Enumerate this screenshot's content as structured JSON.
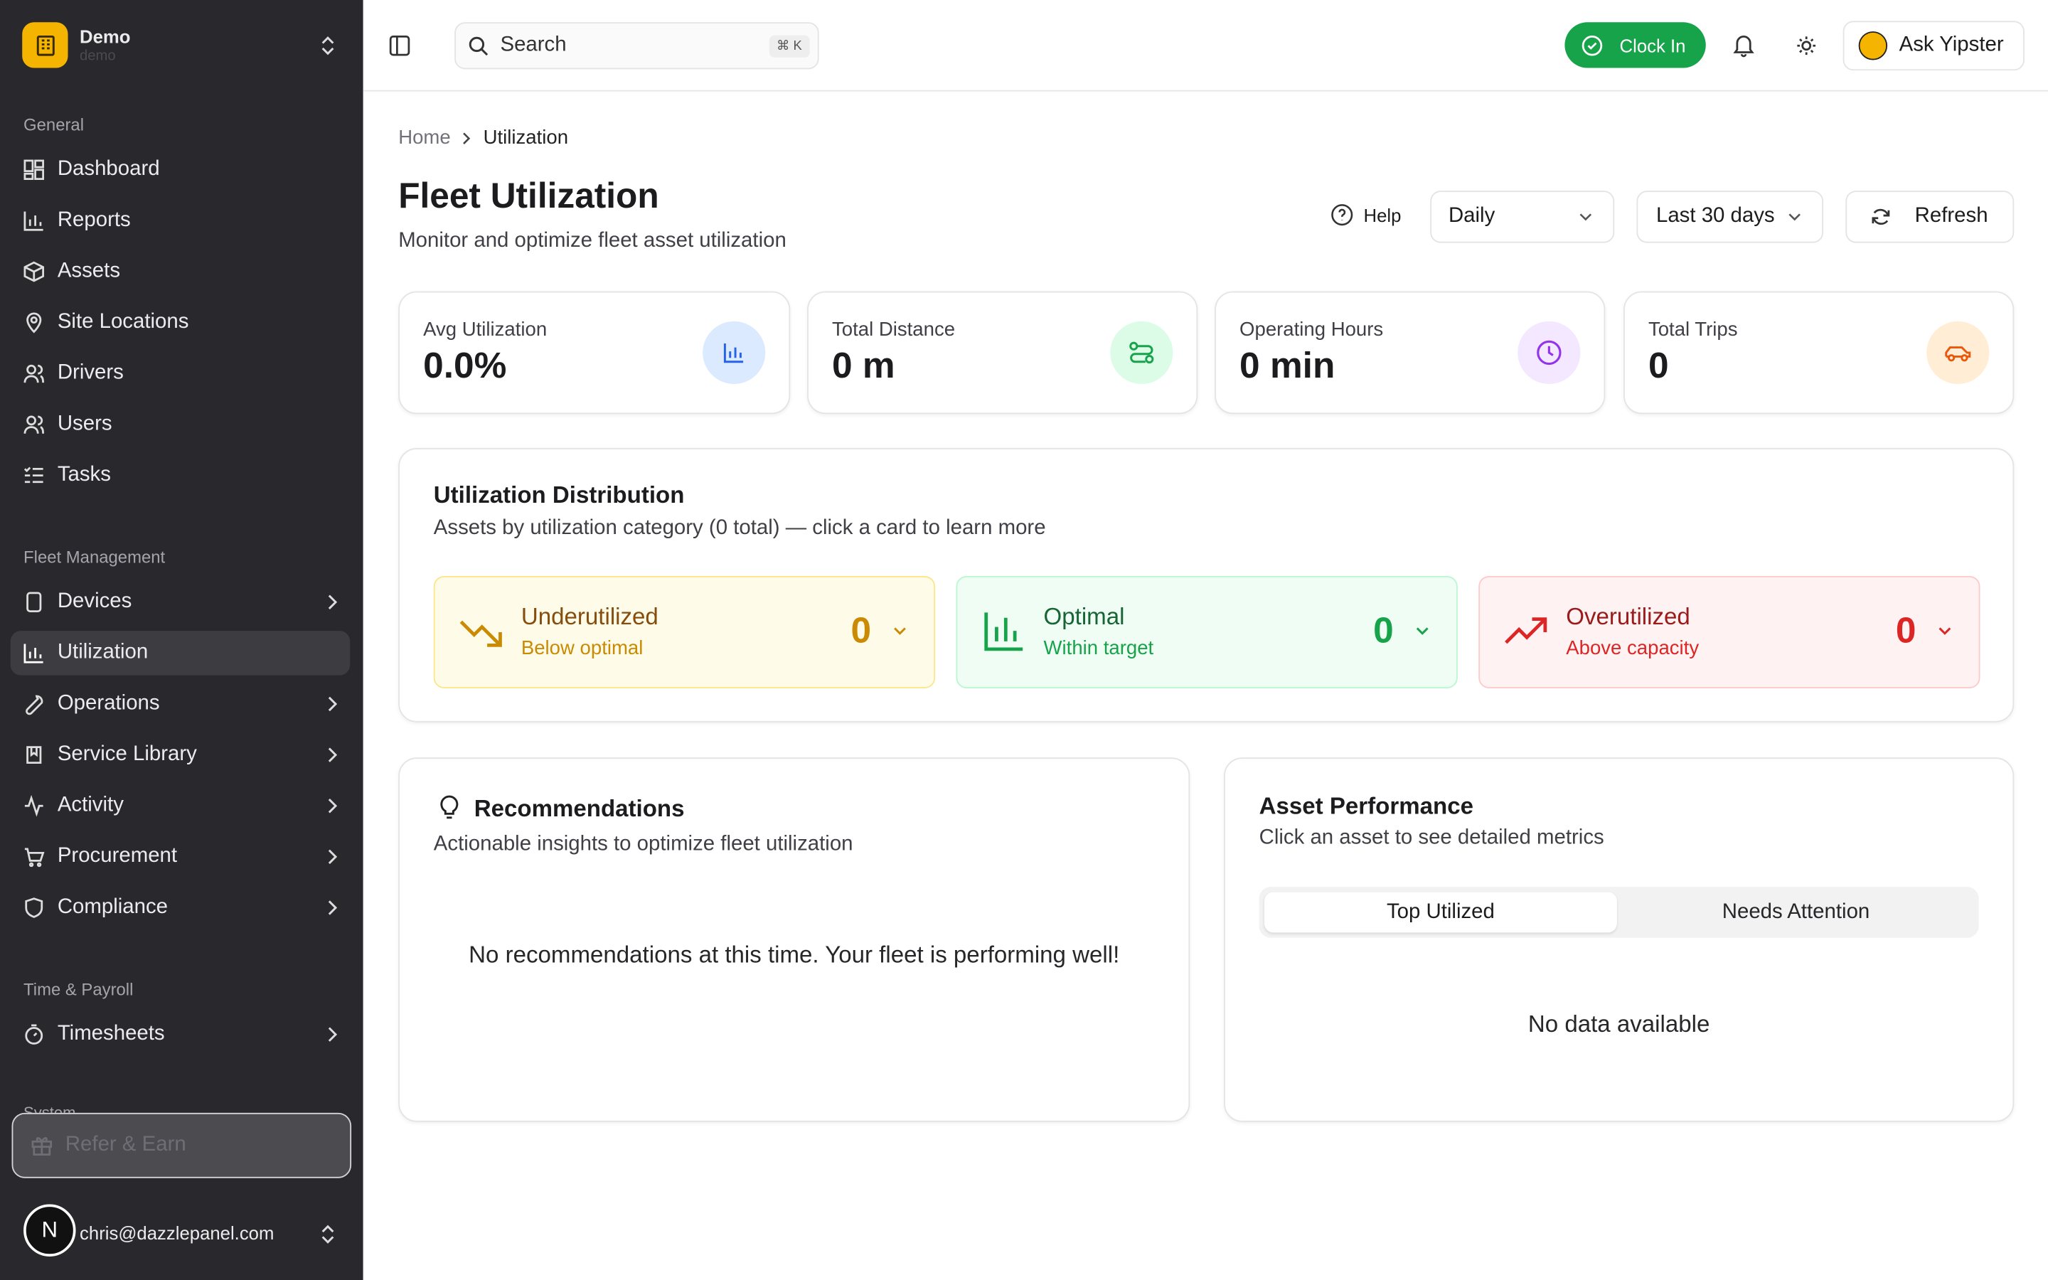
{
  "sidebar": {
    "org": {
      "name": "Demo",
      "slug": "demo"
    },
    "sections": [
      {
        "label": "General",
        "items": [
          "Dashboard",
          "Reports",
          "Assets",
          "Site Locations",
          "Drivers",
          "Users",
          "Tasks"
        ]
      },
      {
        "label": "Fleet Management",
        "items": [
          "Devices",
          "Utilization",
          "Operations",
          "Service Library",
          "Activity",
          "Procurement",
          "Compliance"
        ]
      },
      {
        "label": "Time & Payroll",
        "items": [
          "Timesheets"
        ]
      }
    ],
    "hidden_section": "System",
    "refer": "Refer & Earn",
    "user": {
      "avatar": "N",
      "email": "chris@dazzlepanel.com"
    }
  },
  "topbar": {
    "search": "Search",
    "shortcut": "⌘ K",
    "clock_in": "Clock In",
    "assistant": "Ask Yipster"
  },
  "breadcrumb": [
    "Home",
    "Utilization"
  ],
  "header": {
    "title": "Fleet Utilization",
    "subtitle": "Monitor and optimize fleet asset utilization",
    "help": "Help",
    "interval": "Daily",
    "range": "Last 30 days",
    "refresh": "Refresh"
  },
  "stats": [
    {
      "label": "Avg Utilization",
      "value": "0.0%"
    },
    {
      "label": "Total Distance",
      "value": "0 m"
    },
    {
      "label": "Operating Hours",
      "value": "0 min"
    },
    {
      "label": "Total Trips",
      "value": "0"
    }
  ],
  "distribution": {
    "title": "Utilization Distribution",
    "subtitle": "Assets by utilization category (0 total) — click a card to learn more",
    "cards": [
      {
        "name": "Underutilized",
        "desc": "Below optimal",
        "count": "0"
      },
      {
        "name": "Optimal",
        "desc": "Within target",
        "count": "0"
      },
      {
        "name": "Overutilized",
        "desc": "Above capacity",
        "count": "0"
      }
    ]
  },
  "recommendations": {
    "title": "Recommendations",
    "subtitle": "Actionable insights to optimize fleet utilization",
    "empty": "No recommendations at this time. Your fleet is performing well!"
  },
  "asset_performance": {
    "title": "Asset Performance",
    "subtitle": "Click an asset to see detailed metrics",
    "tabs": [
      "Top Utilized",
      "Needs Attention"
    ],
    "empty": "No data available"
  }
}
